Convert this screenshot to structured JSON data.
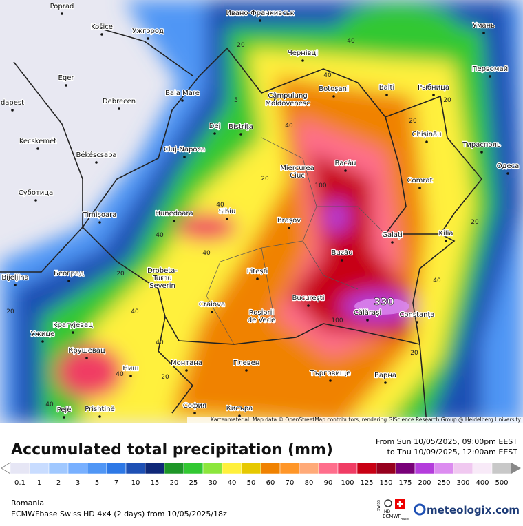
{
  "map": {
    "attribution": "Kartenmaterial: Map data © OpenStreetMap contributors, rendering GIScience Research Group @ Heidelberg University",
    "max_label": "330",
    "cities": [
      [
        "Poprad"
      ],
      [
        "Košice"
      ],
      [
        "Ужгород"
      ],
      [
        "Ивано-Франкивськ"
      ],
      [
        "Умань"
      ],
      [
        "Eger"
      ],
      [
        "Чернівці"
      ],
      [
        "Первомай"
      ],
      [
        "Balti"
      ],
      [
        "Рыбница"
      ],
      [
        "dapest"
      ],
      [
        "Botoșani"
      ],
      [
        "Baia Mare"
      ],
      [
        "Debrecen"
      ],
      [
        "Câmpulung",
        "Moldovenesc"
      ],
      [
        "Dej"
      ],
      [
        "Bistrița"
      ],
      [
        "Chișinău"
      ],
      [
        "Kecskemét"
      ],
      [
        "Тирасполь"
      ],
      [
        "Cluj-Napoca"
      ],
      [
        "Békéscsaba"
      ],
      [
        "Bacău"
      ],
      [
        "Одеса"
      ],
      [
        "Miercurea",
        "Ciuc"
      ],
      [
        "Comrat"
      ],
      [
        "Суботица"
      ],
      [
        "Sibiu"
      ],
      [
        "Hunedoara"
      ],
      [
        "Timișoara"
      ],
      [
        "Brașov"
      ],
      [
        "Galați"
      ],
      [
        "Kilia"
      ],
      [
        "Buzău"
      ],
      [
        "Београд"
      ],
      [
        "Drobeta-",
        "Turnu",
        "Severin"
      ],
      [
        "Pitești"
      ],
      [
        "Bijeljina"
      ],
      [
        "Craiova"
      ],
      [
        "București"
      ],
      [
        "Călărași"
      ],
      [
        "Constanța"
      ],
      [
        "Kрагујевац"
      ],
      [
        "Roșiorii",
        "de Vede"
      ],
      [
        "Ужице"
      ],
      [
        "Крушевац"
      ],
      [
        "Монтана"
      ],
      [
        "Плевен"
      ],
      [
        "Ниш"
      ],
      [
        "Търговище"
      ],
      [
        "Варна"
      ],
      [
        "Pejë"
      ],
      [
        "Prishtinë"
      ],
      [
        "София"
      ],
      [
        "Кисъра"
      ]
    ],
    "contours": [
      "20",
      "5",
      "40",
      "40",
      "20",
      "40",
      "20",
      "40",
      "20",
      "5",
      "40",
      "20",
      "100",
      "40",
      "20",
      "40",
      "40",
      "20",
      "40",
      "20",
      "40",
      "100",
      "20",
      "40"
    ]
  },
  "legend": {
    "title": "Accumulated total precipitation (mm)",
    "period": [
      "From Sun 10/05/2025, 09:00pm EEST",
      "to Thu 10/09/2025, 12:00am EEST"
    ],
    "region": "Romania",
    "model": "ECMWFbase Swiss HD 4x4 (2 days) from  10/05/2025/18z",
    "brand": "meteologix.com",
    "badge": [
      "SWISS",
      "HD",
      "ECMWF",
      "base"
    ],
    "scale": [
      {
        "value": 0.1,
        "color": "#e6e6f5"
      },
      {
        "value": 1,
        "color": "#c8dcff"
      },
      {
        "value": 2,
        "color": "#a0c8ff"
      },
      {
        "value": 3,
        "color": "#78b0ff"
      },
      {
        "value": 5,
        "color": "#5096f5"
      },
      {
        "value": 7,
        "color": "#2d78e6"
      },
      {
        "value": 10,
        "color": "#1e50b4"
      },
      {
        "value": 15,
        "color": "#0f2878"
      },
      {
        "value": 20,
        "color": "#1e9628"
      },
      {
        "value": 25,
        "color": "#32c832"
      },
      {
        "value": 30,
        "color": "#8ce63c"
      },
      {
        "value": 40,
        "color": "#fff03c"
      },
      {
        "value": 50,
        "color": "#e6c800"
      },
      {
        "value": 60,
        "color": "#f08200"
      },
      {
        "value": 70,
        "color": "#ff9628"
      },
      {
        "value": 80,
        "color": "#ffaa78"
      },
      {
        "value": 90,
        "color": "#ff6e8c"
      },
      {
        "value": 100,
        "color": "#f03c64"
      },
      {
        "value": 125,
        "color": "#c80014"
      },
      {
        "value": 150,
        "color": "#96001e"
      },
      {
        "value": 175,
        "color": "#780078"
      },
      {
        "value": 200,
        "color": "#b43cdc"
      },
      {
        "value": 250,
        "color": "#dc8cf0"
      },
      {
        "value": 300,
        "color": "#f0c8f0"
      },
      {
        "value": 400,
        "color": "#f8eaf8"
      },
      {
        "value": 500,
        "color": "#c8c8c8"
      }
    ]
  }
}
